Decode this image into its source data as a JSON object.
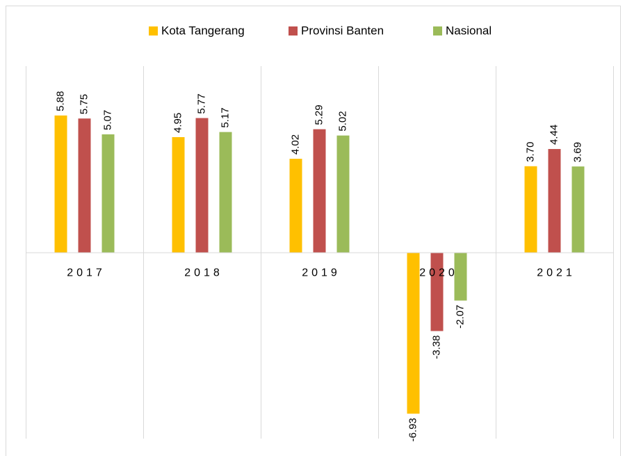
{
  "chart_data": {
    "type": "bar",
    "categories": [
      "2017",
      "2018",
      "2019",
      "2020",
      "2021"
    ],
    "series": [
      {
        "name": "Kota Tangerang",
        "color": "#FFC000",
        "values": [
          5.88,
          4.95,
          4.02,
          -6.93,
          3.7
        ],
        "value_labels": [
          "5.88",
          "4.95",
          "4.02",
          "-6.93",
          "3.70"
        ]
      },
      {
        "name": "Provinsi Banten",
        "color": "#C0504D",
        "values": [
          5.75,
          5.77,
          5.29,
          -3.38,
          4.44
        ],
        "value_labels": [
          "5.75",
          "5.77",
          "5.29",
          "-3.38",
          "4.44"
        ]
      },
      {
        "name": "Nasional",
        "color": "#9BBB59",
        "values": [
          5.07,
          5.17,
          5.02,
          -2.07,
          3.69
        ],
        "value_labels": [
          "5.07",
          "5.17",
          "5.02",
          "-2.07",
          "3.69"
        ]
      }
    ],
    "ylim": [
      -8,
      8
    ],
    "legend": "top"
  }
}
